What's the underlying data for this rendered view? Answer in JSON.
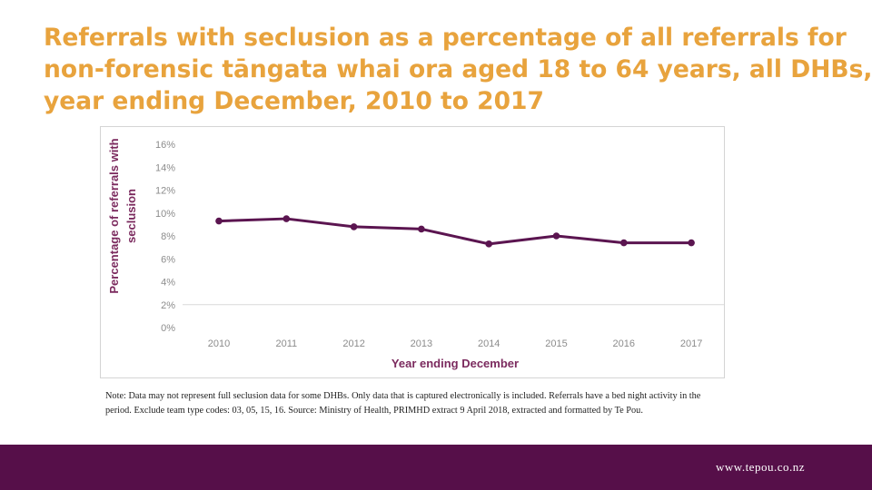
{
  "title": {
    "line1": "Referrals with seclusion as a percentage of all referrals for",
    "line2": "non-forensic tāngata whai ora aged 18 to 64 years, all DHBs,",
    "line3": "year ending December, 2010 to 2017"
  },
  "chart_data": {
    "type": "line",
    "title": "",
    "xlabel": "Year ending December",
    "ylabel_line1": "Percentage of referrals with",
    "ylabel_line2": "seclusion",
    "categories": [
      "2010",
      "2011",
      "2012",
      "2013",
      "2014",
      "2015",
      "2016",
      "2017"
    ],
    "series": [
      {
        "name": "Seclusion %",
        "values": [
          9.3,
          9.5,
          8.8,
          8.6,
          7.3,
          8.0,
          7.4,
          7.4
        ]
      }
    ],
    "ylim": [
      0,
      16
    ],
    "yticks": [
      0,
      2,
      4,
      6,
      8,
      10,
      12,
      14,
      16
    ],
    "ytick_labels": [
      "0%",
      "2%",
      "4%",
      "6%",
      "8%",
      "10%",
      "12%",
      "14%",
      "16%"
    ],
    "grid": false,
    "colors": {
      "line": "#5b1550",
      "axis": "#d9d9d9",
      "ticks": "#8c8c8c",
      "axis_title": "#7b2a5e"
    }
  },
  "note": "Note: Data may not represent full seclusion data for some DHBs. Only data that is captured electronically is included. Referrals have a bed night activity in the period. Exclude team type codes: 03, 05, 15, 16. Source: Ministry of Health, PRIMHD extract 9 April 2018, extracted and formatted by Te Pou.",
  "footer": {
    "url": "www.tepou.co.nz",
    "background": "#560f49"
  }
}
